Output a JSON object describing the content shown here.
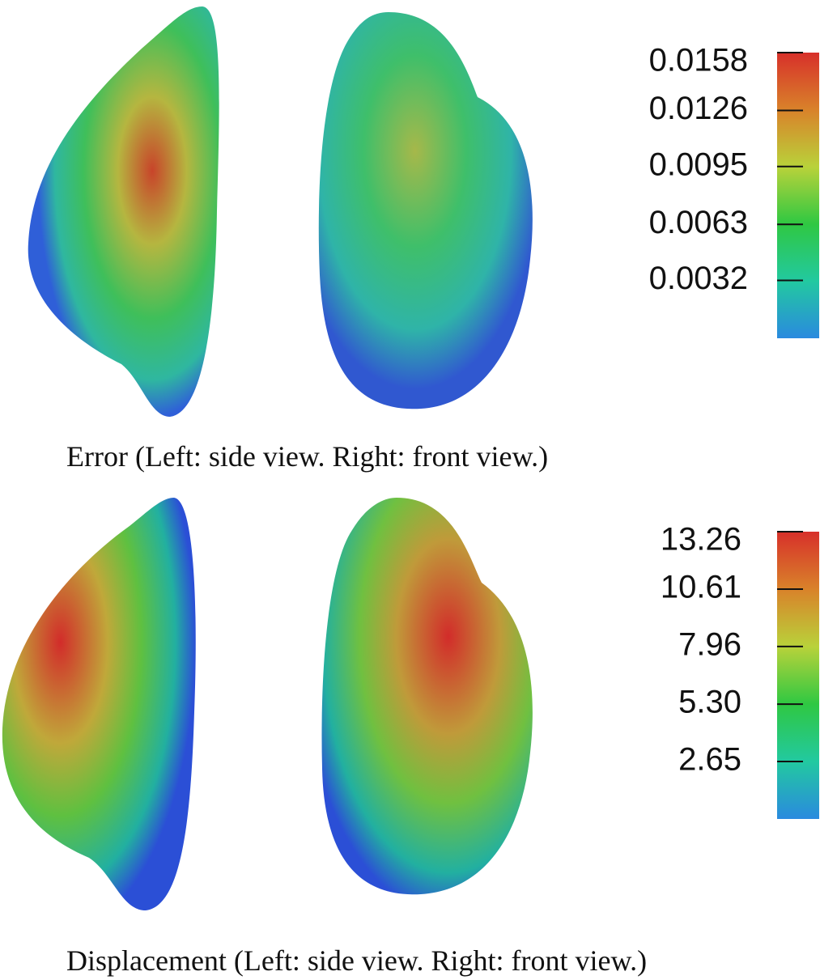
{
  "panels": [
    {
      "caption": "Error (Left: side view. Right: front view.)",
      "colorbar": {
        "lim": [
          0,
          0.0158
        ],
        "ticks": [
          0.0158,
          0.0126,
          0.0095,
          0.0063,
          0.0032
        ]
      }
    },
    {
      "caption": "Displacement (Left: side view. Right: front view.)",
      "colorbar": {
        "lim": [
          0,
          13.26
        ],
        "ticks": [
          13.26,
          10.61,
          7.96,
          {
            "value": 5.3,
            "label": "5.30"
          },
          2.65
        ]
      }
    }
  ]
}
